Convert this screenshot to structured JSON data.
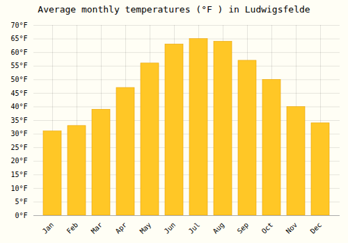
{
  "chart_data": {
    "type": "bar",
    "title": "Average monthly temperatures (°F ) in Ludwigsfelde",
    "categories": [
      "Jan",
      "Feb",
      "Mar",
      "Apr",
      "May",
      "Jun",
      "Jul",
      "Aug",
      "Sep",
      "Oct",
      "Nov",
      "Dec"
    ],
    "values": [
      31,
      33,
      39,
      47,
      56,
      63,
      65,
      64,
      57,
      50,
      40,
      34
    ],
    "color": "#FFC726",
    "ylim": [
      0,
      70
    ],
    "yticks": [
      {
        "value": 0,
        "label": "0°F"
      },
      {
        "value": 5,
        "label": "5°F"
      },
      {
        "value": 10,
        "label": "10°F"
      },
      {
        "value": 15,
        "label": "15°F"
      },
      {
        "value": 20,
        "label": "20°F"
      },
      {
        "value": 25,
        "label": "25°F"
      },
      {
        "value": 30,
        "label": "30°F"
      },
      {
        "value": 35,
        "label": "35°F"
      },
      {
        "value": 40,
        "label": "40°F"
      },
      {
        "value": 45,
        "label": "45°F"
      },
      {
        "value": 50,
        "label": "50°F"
      },
      {
        "value": 55,
        "label": "55°F"
      },
      {
        "value": 60,
        "label": "60°F"
      },
      {
        "value": 65,
        "label": "65°F"
      },
      {
        "value": 70,
        "label": "70°F"
      }
    ],
    "grid": true
  }
}
